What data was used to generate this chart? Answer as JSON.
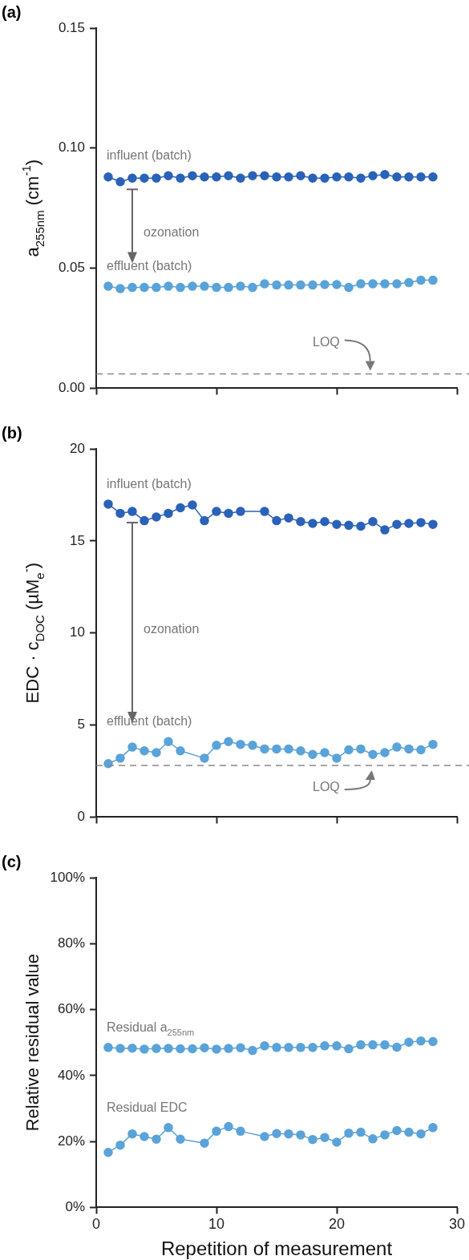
{
  "chart_data": [
    {
      "type": "line",
      "title": "(a)",
      "ylabel": "a$_{255nm}$ (cm$^{-1}$)",
      "x": [
        1,
        2,
        3,
        4,
        5,
        6,
        7,
        8,
        9,
        10,
        11,
        12,
        13,
        14,
        15,
        16,
        17,
        18,
        19,
        20,
        21,
        22,
        23,
        24,
        25,
        26,
        27,
        28
      ],
      "series": [
        {
          "name": "influent (batch)",
          "color": "#2a62b8",
          "values": [
            0.088,
            0.086,
            0.0875,
            0.0875,
            0.0875,
            0.0885,
            0.0875,
            0.0885,
            0.088,
            0.088,
            0.0885,
            0.0875,
            0.0885,
            0.0885,
            0.088,
            0.088,
            0.0885,
            0.0875,
            0.0875,
            0.088,
            0.088,
            0.0875,
            0.0885,
            0.089,
            0.088,
            0.088,
            0.088,
            0.088
          ]
        },
        {
          "name": "effluent (batch)",
          "color": "#5aa3d8",
          "values": [
            0.0425,
            0.0415,
            0.042,
            0.042,
            0.042,
            0.0425,
            0.042,
            0.0425,
            0.0425,
            0.042,
            0.042,
            0.0425,
            0.042,
            0.0435,
            0.043,
            0.043,
            0.043,
            0.043,
            0.0432,
            0.0432,
            0.042,
            0.0435,
            0.0435,
            0.0435,
            0.0435,
            0.044,
            0.045,
            0.045
          ]
        }
      ],
      "xlim": [
        0,
        30
      ],
      "xticks": [
        {
          "value": 0,
          "label": null
        },
        {
          "value": 10,
          "label": null
        },
        {
          "value": 20,
          "label": null
        },
        {
          "value": 30,
          "label": null
        }
      ],
      "ylim": [
        0,
        0.15
      ],
      "yticks": [
        {
          "value": 0,
          "label": "0.00"
        },
        {
          "value": 0.05,
          "label": "0.05"
        },
        {
          "value": 0.1,
          "label": "0.10"
        },
        {
          "value": 0.15,
          "label": "0.15"
        }
      ],
      "tick_labels": "y",
      "grid": false,
      "legend": false,
      "marker": "circle",
      "line_style": "solid",
      "annotations": [
        "ozonation"
      ],
      "ref_lines": [
        {
          "axis": "y",
          "value": 0.006,
          "label": "LOQ",
          "color": "#888888",
          "line_style": "dashed"
        }
      ]
    },
    {
      "type": "line",
      "title": "(b)",
      "ylabel": "EDC · c$_{DOC}$ (µM$_{e}$$^{-}$)",
      "x": [
        1,
        2,
        3,
        4,
        5,
        6,
        7,
        8,
        9,
        10,
        11,
        12,
        13,
        14,
        15,
        16,
        17,
        18,
        19,
        20,
        21,
        22,
        23,
        24,
        25,
        26,
        27,
        28
      ],
      "series": [
        {
          "name": "influent (batch)",
          "color": "#2a62b8",
          "values": [
            17.0,
            16.5,
            16.6,
            16.1,
            16.3,
            16.5,
            16.8,
            16.95,
            16.1,
            16.6,
            16.5,
            16.6,
            null,
            16.6,
            16.1,
            16.25,
            16.05,
            15.95,
            16.05,
            15.9,
            15.85,
            15.8,
            16.05,
            15.6,
            15.9,
            15.95,
            16.0,
            15.9
          ]
        },
        {
          "name": "effluent (batch)",
          "color": "#5aa3d8",
          "values": [
            2.9,
            3.2,
            3.8,
            3.6,
            3.5,
            4.1,
            3.6,
            null,
            3.2,
            3.9,
            4.1,
            3.95,
            3.9,
            3.7,
            3.7,
            3.7,
            3.6,
            3.4,
            3.5,
            3.2,
            3.65,
            3.7,
            3.4,
            3.5,
            3.8,
            3.7,
            3.65,
            3.95
          ]
        }
      ],
      "xlim": [
        0,
        30
      ],
      "xticks": [
        {
          "value": 0,
          "label": null
        },
        {
          "value": 10,
          "label": null
        },
        {
          "value": 20,
          "label": null
        },
        {
          "value": 30,
          "label": null
        }
      ],
      "ylim": [
        0,
        20
      ],
      "yticks": [
        0,
        5,
        10,
        15,
        20
      ],
      "tick_labels": "y",
      "grid": false,
      "legend": false,
      "marker": "circle",
      "line_style": "solid",
      "annotations": [
        "ozonation"
      ],
      "ref_lines": [
        {
          "axis": "y",
          "value": 2.8,
          "label": "LOQ",
          "color": "#888888",
          "line_style": "dashed"
        }
      ]
    },
    {
      "type": "line",
      "title": "(c)",
      "xlabel": "Repetition of measurement",
      "ylabel": "Relative residual value",
      "x": [
        1,
        2,
        3,
        4,
        5,
        6,
        7,
        8,
        9,
        10,
        11,
        12,
        13,
        14,
        15,
        16,
        17,
        18,
        19,
        20,
        21,
        22,
        23,
        24,
        25,
        26,
        27,
        28
      ],
      "series": [
        {
          "name": "Residual a$_{255nm}$",
          "color": "#5aa3d8",
          "values": [
            48.5,
            48.2,
            48.3,
            48.0,
            48.2,
            48.2,
            48.1,
            48.1,
            48.4,
            48.0,
            48.2,
            48.4,
            47.6,
            49.0,
            48.5,
            48.5,
            48.5,
            48.5,
            49.0,
            49.0,
            48.1,
            49.3,
            49.3,
            49.3,
            48.6,
            50.1,
            50.5,
            50.3
          ]
        },
        {
          "name": "Residual EDC",
          "color": "#5aa3d8",
          "values": [
            16.7,
            18.9,
            22.3,
            21.5,
            20.7,
            24.2,
            20.7,
            null,
            19.5,
            23.1,
            24.5,
            23.1,
            null,
            21.5,
            22.4,
            22.3,
            22.0,
            20.6,
            21.2,
            19.8,
            22.5,
            22.8,
            20.8,
            22.0,
            23.3,
            22.8,
            22.3,
            24.2
          ]
        }
      ],
      "xlim": [
        0,
        30
      ],
      "xticks": [
        0,
        10,
        20,
        30
      ],
      "ylim": [
        0,
        100
      ],
      "yticks": [
        {
          "value": 0,
          "label": "0%"
        },
        {
          "value": 20,
          "label": "20%"
        },
        {
          "value": 40,
          "label": "40%"
        },
        {
          "value": 60,
          "label": "60%"
        },
        {
          "value": 80,
          "label": "80%"
        },
        {
          "value": 100,
          "label": "100%"
        }
      ],
      "grid": false,
      "legend": false,
      "marker": "circle",
      "line_style": "solid"
    }
  ]
}
